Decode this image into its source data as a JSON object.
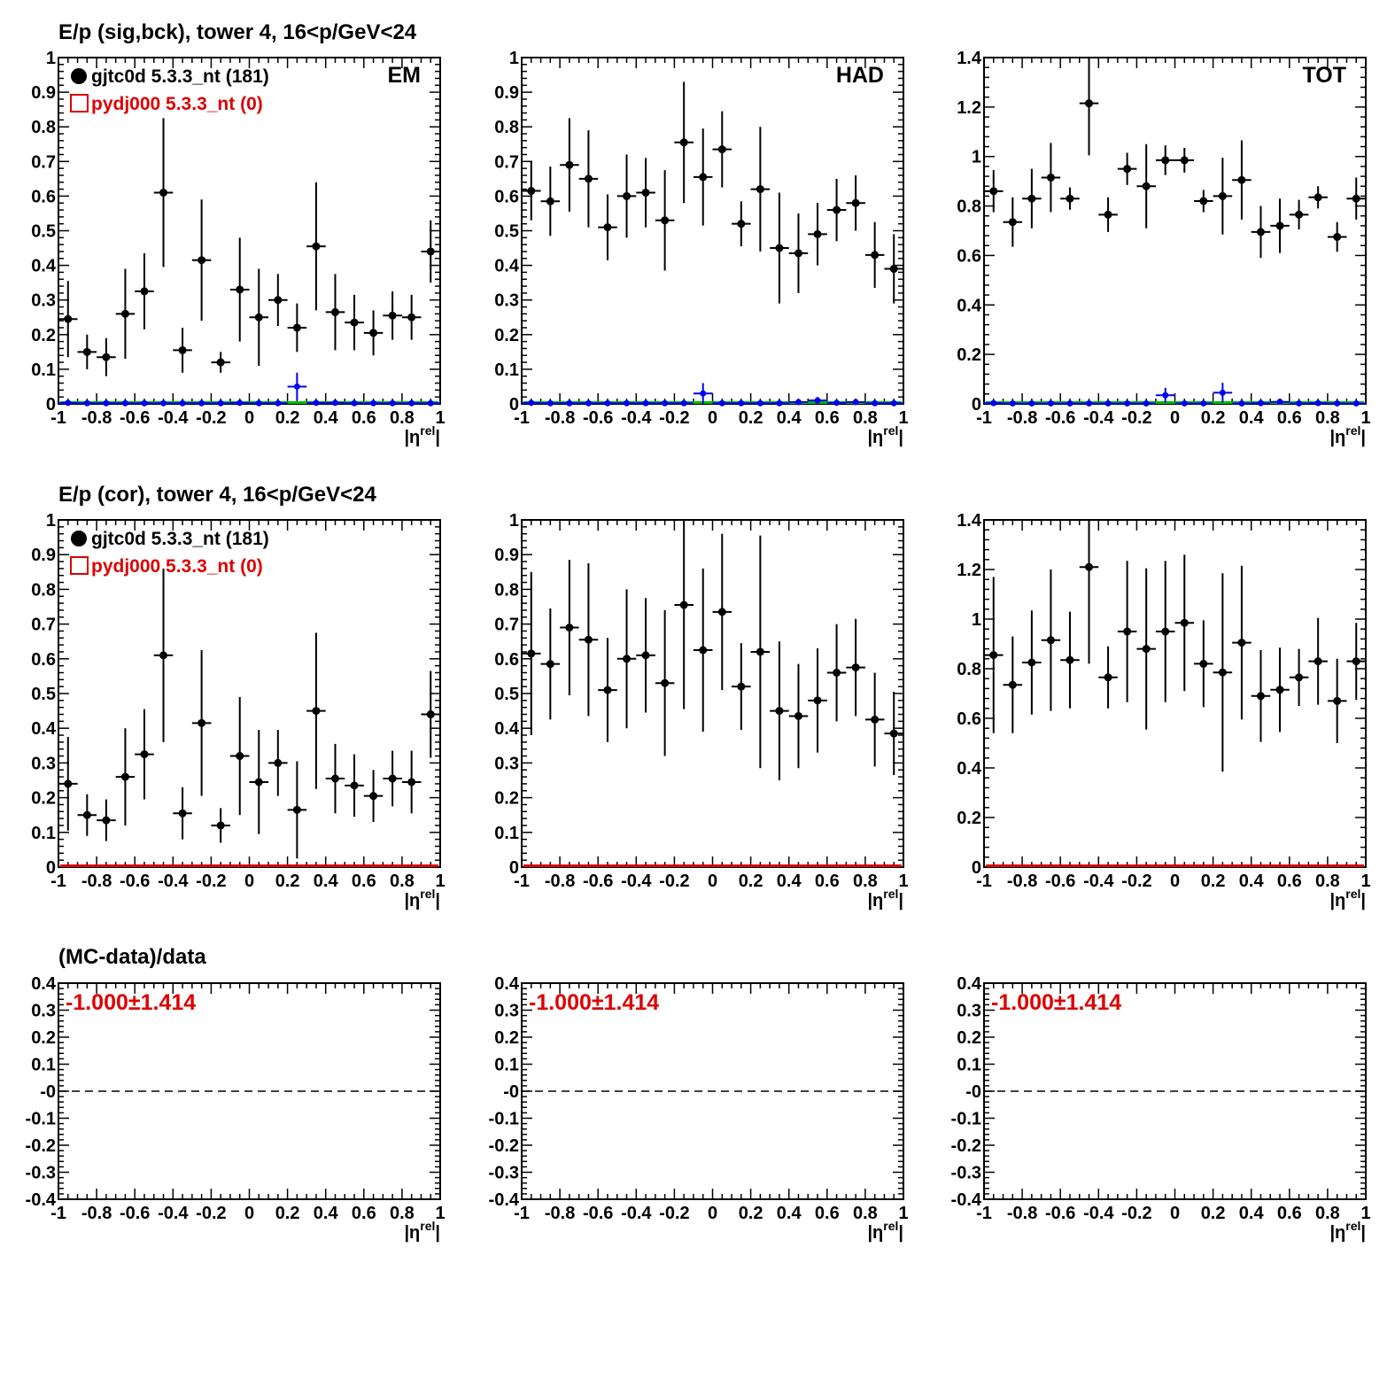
{
  "row_titles": [
    "E/p (sig,bck), tower 4, 16<p/GeV<24",
    "E/p (cor), tower 4, 16<p/GeV<24",
    "(MC-data)/data"
  ],
  "x_axis": {
    "label_main": "|η",
    "label_sup": "rel",
    "label_close": "|",
    "tick_labels": [
      "-1",
      "-0.8",
      "-0.6",
      "-0.4",
      "-0.2",
      "0",
      "0.2",
      "0.4",
      "0.6",
      "0.8",
      "1"
    ]
  },
  "legend": {
    "data_label": "gjtc0d 5.3.3_nt (181)",
    "mc_label": "pydj000 5.3.3_nt (0)"
  },
  "panel_tags": [
    "EM",
    "HAD",
    "TOT"
  ],
  "ratio_text": "-1.000±1.414",
  "colors": {
    "data": "#000000",
    "mc": "#dd0000",
    "bck": "#0000ee",
    "baseline_green": "#00bb00",
    "baseline_red": "#dd0000"
  },
  "chart_data": [
    {
      "type": "scatter",
      "row": 0,
      "col": 0,
      "tag": "EM",
      "xlim": [
        -1,
        1
      ],
      "ylim": [
        0,
        1
      ],
      "yticks": [
        "0",
        "0.1",
        "0.2",
        "0.3",
        "0.4",
        "0.5",
        "0.6",
        "0.7",
        "0.8",
        "0.9",
        "1"
      ],
      "x": [
        -0.95,
        -0.85,
        -0.75,
        -0.65,
        -0.55,
        -0.45,
        -0.35,
        -0.25,
        -0.15,
        -0.05,
        0.05,
        0.15,
        0.25,
        0.35,
        0.45,
        0.55,
        0.65,
        0.75,
        0.85,
        0.95
      ],
      "series": [
        {
          "name": "gjtc0d 5.3.3_nt (181)",
          "values": [
            0.245,
            0.15,
            0.135,
            0.26,
            0.325,
            0.61,
            0.155,
            0.415,
            0.12,
            0.33,
            0.25,
            0.3,
            0.22,
            0.455,
            0.265,
            0.235,
            0.205,
            0.255,
            0.25,
            0.44
          ],
          "errors": [
            0.11,
            0.05,
            0.055,
            0.13,
            0.11,
            0.215,
            0.065,
            0.175,
            0.03,
            0.15,
            0.14,
            0.075,
            0.07,
            0.185,
            0.11,
            0.08,
            0.065,
            0.07,
            0.065,
            0.09
          ]
        },
        {
          "values": [
            0.003,
            0.002,
            0.002,
            0.002,
            0.002,
            0.002,
            0.002,
            0.002,
            0.002,
            0.003,
            0.002,
            0.002,
            0.05,
            0.003,
            0.003,
            0.002,
            0.002,
            0.002,
            0.002,
            0.002
          ],
          "errors": [
            0.003,
            0.002,
            0.002,
            0.002,
            0.002,
            0.002,
            0.002,
            0.002,
            0.002,
            0.003,
            0.002,
            0.002,
            0.04,
            0.003,
            0.003,
            0.002,
            0.002,
            0.002,
            0.002,
            0.002
          ]
        }
      ]
    },
    {
      "type": "scatter",
      "row": 0,
      "col": 1,
      "tag": "HAD",
      "xlim": [
        -1,
        1
      ],
      "ylim": [
        0,
        1
      ],
      "yticks": [
        "0",
        "0.1",
        "0.2",
        "0.3",
        "0.4",
        "0.5",
        "0.6",
        "0.7",
        "0.8",
        "0.9",
        "1"
      ],
      "x": [
        -0.95,
        -0.85,
        -0.75,
        -0.65,
        -0.55,
        -0.45,
        -0.35,
        -0.25,
        -0.15,
        -0.05,
        0.05,
        0.15,
        0.25,
        0.35,
        0.45,
        0.55,
        0.65,
        0.75,
        0.85,
        0.95
      ],
      "series": [
        {
          "name": "gjtc0d 5.3.3_nt (181)",
          "values": [
            0.615,
            0.585,
            0.69,
            0.65,
            0.51,
            0.6,
            0.61,
            0.53,
            0.755,
            0.655,
            0.735,
            0.52,
            0.62,
            0.45,
            0.435,
            0.49,
            0.56,
            0.58,
            0.43,
            0.39
          ],
          "errors": [
            0.085,
            0.1,
            0.135,
            0.14,
            0.095,
            0.12,
            0.1,
            0.145,
            0.175,
            0.14,
            0.11,
            0.065,
            0.18,
            0.16,
            0.115,
            0.09,
            0.09,
            0.08,
            0.095,
            0.1
          ]
        },
        {
          "values": [
            0.003,
            0.002,
            0.002,
            0.002,
            0.002,
            0.002,
            0.002,
            0.002,
            0.002,
            0.03,
            0.002,
            0.002,
            0.002,
            0.002,
            0.005,
            0.01,
            0.003,
            0.005,
            0.002,
            0.002
          ],
          "errors": [
            0.003,
            0.002,
            0.002,
            0.002,
            0.002,
            0.002,
            0.002,
            0.002,
            0.002,
            0.03,
            0.002,
            0.002,
            0.002,
            0.002,
            0.005,
            0.01,
            0.003,
            0.005,
            0.002,
            0.002
          ]
        }
      ]
    },
    {
      "type": "scatter",
      "row": 0,
      "col": 2,
      "tag": "TOT",
      "xlim": [
        -1,
        1
      ],
      "ylim": [
        0,
        1.4
      ],
      "yticks": [
        "0",
        "0.2",
        "0.4",
        "0.6",
        "0.8",
        "1",
        "1.2",
        "1.4"
      ],
      "x": [
        -0.95,
        -0.85,
        -0.75,
        -0.65,
        -0.55,
        -0.45,
        -0.35,
        -0.25,
        -0.15,
        -0.05,
        0.05,
        0.15,
        0.25,
        0.35,
        0.45,
        0.55,
        0.65,
        0.75,
        0.85,
        0.95
      ],
      "series": [
        {
          "name": "gjtc0d 5.3.3_nt (181)",
          "values": [
            0.86,
            0.735,
            0.83,
            0.915,
            0.83,
            1.215,
            0.765,
            0.95,
            0.88,
            0.985,
            0.985,
            0.82,
            0.84,
            0.905,
            0.695,
            0.72,
            0.765,
            0.835,
            0.675,
            0.83
          ],
          "errors": [
            0.085,
            0.1,
            0.12,
            0.14,
            0.045,
            0.21,
            0.07,
            0.065,
            0.17,
            0.06,
            0.05,
            0.045,
            0.155,
            0.16,
            0.105,
            0.11,
            0.06,
            0.045,
            0.06,
            0.085
          ]
        },
        {
          "values": [
            0.003,
            0.002,
            0.002,
            0.002,
            0.002,
            0.002,
            0.002,
            0.002,
            0.002,
            0.035,
            0.002,
            0.002,
            0.045,
            0.002,
            0.003,
            0.008,
            0.002,
            0.003,
            0.002,
            0.002
          ],
          "errors": [
            0.003,
            0.002,
            0.002,
            0.002,
            0.002,
            0.002,
            0.002,
            0.002,
            0.002,
            0.03,
            0.002,
            0.002,
            0.04,
            0.002,
            0.003,
            0.008,
            0.002,
            0.003,
            0.002,
            0.002
          ]
        }
      ]
    },
    {
      "type": "scatter",
      "row": 1,
      "col": 0,
      "xlim": [
        -1,
        1
      ],
      "ylim": [
        0,
        1
      ],
      "yticks": [
        "0",
        "0.1",
        "0.2",
        "0.3",
        "0.4",
        "0.5",
        "0.6",
        "0.7",
        "0.8",
        "0.9",
        "1"
      ],
      "x": [
        -0.95,
        -0.85,
        -0.75,
        -0.65,
        -0.55,
        -0.45,
        -0.35,
        -0.25,
        -0.15,
        -0.05,
        0.05,
        0.15,
        0.25,
        0.35,
        0.45,
        0.55,
        0.65,
        0.75,
        0.85,
        0.95
      ],
      "series": [
        {
          "name": "gjtc0d 5.3.3_nt (181)",
          "values": [
            0.24,
            0.15,
            0.135,
            0.26,
            0.325,
            0.61,
            0.155,
            0.415,
            0.12,
            0.32,
            0.245,
            0.3,
            0.165,
            0.45,
            0.255,
            0.235,
            0.205,
            0.255,
            0.245,
            0.44
          ],
          "errors": [
            0.135,
            0.06,
            0.06,
            0.14,
            0.13,
            0.25,
            0.075,
            0.21,
            0.05,
            0.17,
            0.15,
            0.095,
            0.14,
            0.225,
            0.1,
            0.09,
            0.075,
            0.08,
            0.09,
            0.125
          ]
        }
      ]
    },
    {
      "type": "scatter",
      "row": 1,
      "col": 1,
      "xlim": [
        -1,
        1
      ],
      "ylim": [
        0,
        1
      ],
      "yticks": [
        "0",
        "0.1",
        "0.2",
        "0.3",
        "0.4",
        "0.5",
        "0.6",
        "0.7",
        "0.8",
        "0.9",
        "1"
      ],
      "x": [
        -0.95,
        -0.85,
        -0.75,
        -0.65,
        -0.55,
        -0.45,
        -0.35,
        -0.25,
        -0.15,
        -0.05,
        0.05,
        0.15,
        0.25,
        0.35,
        0.45,
        0.55,
        0.65,
        0.75,
        0.85,
        0.95
      ],
      "series": [
        {
          "name": "gjtc0d 5.3.3_nt (181)",
          "values": [
            0.615,
            0.585,
            0.69,
            0.655,
            0.51,
            0.6,
            0.61,
            0.53,
            0.755,
            0.625,
            0.735,
            0.52,
            0.62,
            0.45,
            0.435,
            0.48,
            0.56,
            0.575,
            0.425,
            0.385
          ],
          "errors": [
            0.235,
            0.16,
            0.195,
            0.22,
            0.15,
            0.2,
            0.165,
            0.21,
            0.3,
            0.235,
            0.225,
            0.125,
            0.335,
            0.2,
            0.15,
            0.15,
            0.14,
            0.14,
            0.135,
            0.12
          ]
        }
      ]
    },
    {
      "type": "scatter",
      "row": 1,
      "col": 2,
      "xlim": [
        -1,
        1
      ],
      "ylim": [
        0,
        1.4
      ],
      "yticks": [
        "0",
        "0.2",
        "0.4",
        "0.6",
        "0.8",
        "1",
        "1.2",
        "1.4"
      ],
      "x": [
        -0.95,
        -0.85,
        -0.75,
        -0.65,
        -0.55,
        -0.45,
        -0.35,
        -0.25,
        -0.15,
        -0.05,
        0.05,
        0.15,
        0.25,
        0.35,
        0.45,
        0.55,
        0.65,
        0.75,
        0.85,
        0.95
      ],
      "series": [
        {
          "name": "gjtc0d 5.3.3_nt (181)",
          "values": [
            0.855,
            0.735,
            0.825,
            0.915,
            0.835,
            1.21,
            0.765,
            0.95,
            0.88,
            0.95,
            0.985,
            0.82,
            0.785,
            0.905,
            0.69,
            0.715,
            0.765,
            0.83,
            0.67,
            0.83
          ],
          "errors": [
            0.315,
            0.195,
            0.21,
            0.285,
            0.195,
            0.39,
            0.125,
            0.285,
            0.325,
            0.285,
            0.275,
            0.175,
            0.4,
            0.31,
            0.185,
            0.17,
            0.115,
            0.175,
            0.17,
            0.155
          ]
        }
      ]
    },
    {
      "type": "line",
      "row": 2,
      "col": 0,
      "xlim": [
        -1,
        1
      ],
      "ylim": [
        -0.4,
        0.4
      ],
      "yticks": [
        "-0.4",
        "-0.3",
        "-0.2",
        "-0.1",
        "-0",
        "0.1",
        "0.2",
        "0.3",
        "0.4"
      ],
      "reference_line_y": 0,
      "series": []
    },
    {
      "type": "line",
      "row": 2,
      "col": 1,
      "xlim": [
        -1,
        1
      ],
      "ylim": [
        -0.4,
        0.4
      ],
      "yticks": [
        "-0.4",
        "-0.3",
        "-0.2",
        "-0.1",
        "-0",
        "0.1",
        "0.2",
        "0.3",
        "0.4"
      ],
      "reference_line_y": 0,
      "series": []
    },
    {
      "type": "line",
      "row": 2,
      "col": 2,
      "xlim": [
        -1,
        1
      ],
      "ylim": [
        -0.4,
        0.4
      ],
      "yticks": [
        "-0.4",
        "-0.3",
        "-0.2",
        "-0.1",
        "-0",
        "0.1",
        "0.2",
        "0.3",
        "0.4"
      ],
      "reference_line_y": 0,
      "series": []
    }
  ]
}
